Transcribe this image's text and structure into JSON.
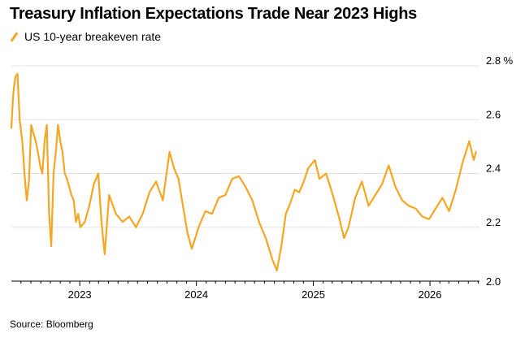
{
  "chart_data": {
    "type": "line",
    "title": "Treasury Inflation Expectations Trade Near 2023 Highs",
    "series": [
      {
        "name": "US 10-year breakeven rate",
        "color": "#f5a623",
        "x": [
          "2022-06-01",
          "2022-06-06",
          "2022-06-09",
          "2022-06-14",
          "2022-06-20",
          "2022-06-27",
          "2022-07-05",
          "2022-07-12",
          "2022-07-19",
          "2022-07-26",
          "2022-08-02",
          "2022-08-09",
          "2022-08-16",
          "2022-08-23",
          "2022-08-30",
          "2022-09-06",
          "2022-09-13",
          "2022-09-20",
          "2022-09-27",
          "2022-10-04",
          "2022-10-11",
          "2022-10-18",
          "2022-10-25",
          "2022-11-01",
          "2022-11-08",
          "2022-11-15",
          "2022-11-22",
          "2022-11-29",
          "2022-12-06",
          "2022-12-13",
          "2022-12-20",
          "2022-12-27",
          "2023-01-03",
          "2023-01-17",
          "2023-01-31",
          "2023-02-14",
          "2023-02-28",
          "2023-03-10",
          "2023-03-20",
          "2023-04-03",
          "2023-04-24",
          "2023-05-15",
          "2023-06-05",
          "2023-06-26",
          "2023-07-17",
          "2023-08-07",
          "2023-08-28",
          "2023-09-18",
          "2023-10-09",
          "2023-10-23",
          "2023-11-06",
          "2023-11-20",
          "2023-12-04",
          "2023-12-18",
          "2024-01-08",
          "2024-01-29",
          "2024-02-19",
          "2024-03-11",
          "2024-04-01",
          "2024-04-22",
          "2024-05-13",
          "2024-06-03",
          "2024-06-24",
          "2024-07-15",
          "2024-08-05",
          "2024-08-26",
          "2024-09-09",
          "2024-09-23",
          "2024-10-07",
          "2024-10-21",
          "2024-11-04",
          "2024-11-18",
          "2024-12-02",
          "2024-12-16",
          "2025-01-06",
          "2025-01-20",
          "2025-02-10",
          "2025-03-03",
          "2025-03-24",
          "2025-04-07",
          "2025-04-21",
          "2025-05-12",
          "2025-06-02",
          "2025-06-23",
          "2025-07-14",
          "2025-08-04",
          "2025-08-25",
          "2025-09-15",
          "2025-10-06",
          "2025-10-27",
          "2025-11-17",
          "2025-12-08",
          "2025-12-29",
          "2026-01-19",
          "2026-02-09",
          "2026-03-02",
          "2026-03-23",
          "2026-04-13",
          "2026-05-04",
          "2026-05-18",
          "2026-05-25"
        ],
        "y": [
          2.57,
          2.68,
          2.72,
          2.76,
          2.77,
          2.6,
          2.52,
          2.4,
          2.3,
          2.37,
          2.58,
          2.55,
          2.52,
          2.48,
          2.43,
          2.4,
          2.52,
          2.58,
          2.25,
          2.13,
          2.4,
          2.48,
          2.58,
          2.52,
          2.48,
          2.4,
          2.38,
          2.35,
          2.32,
          2.3,
          2.22,
          2.25,
          2.2,
          2.22,
          2.28,
          2.36,
          2.4,
          2.22,
          2.1,
          2.32,
          2.25,
          2.22,
          2.24,
          2.2,
          2.25,
          2.33,
          2.37,
          2.3,
          2.48,
          2.42,
          2.38,
          2.28,
          2.18,
          2.12,
          2.2,
          2.26,
          2.25,
          2.31,
          2.32,
          2.38,
          2.39,
          2.35,
          2.3,
          2.22,
          2.16,
          2.08,
          2.04,
          2.13,
          2.25,
          2.29,
          2.34,
          2.33,
          2.37,
          2.42,
          2.45,
          2.38,
          2.4,
          2.32,
          2.23,
          2.16,
          2.2,
          2.31,
          2.37,
          2.28,
          2.32,
          2.36,
          2.43,
          2.35,
          2.3,
          2.28,
          2.27,
          2.24,
          2.23,
          2.27,
          2.31,
          2.26,
          2.34,
          2.44,
          2.52,
          2.45,
          2.48
        ]
      }
    ],
    "ylim": [
      2.0,
      2.8
    ],
    "yticks": [
      "2.0",
      "2.2",
      "2.4",
      "2.6",
      "2.8 %"
    ],
    "xticks": [
      "2023",
      "2024",
      "2025",
      "2026"
    ],
    "xlim": [
      "2022-06-01",
      "2026-06-05"
    ],
    "grid": true,
    "legend_position": "top-left"
  },
  "source": "Source: Bloomberg"
}
